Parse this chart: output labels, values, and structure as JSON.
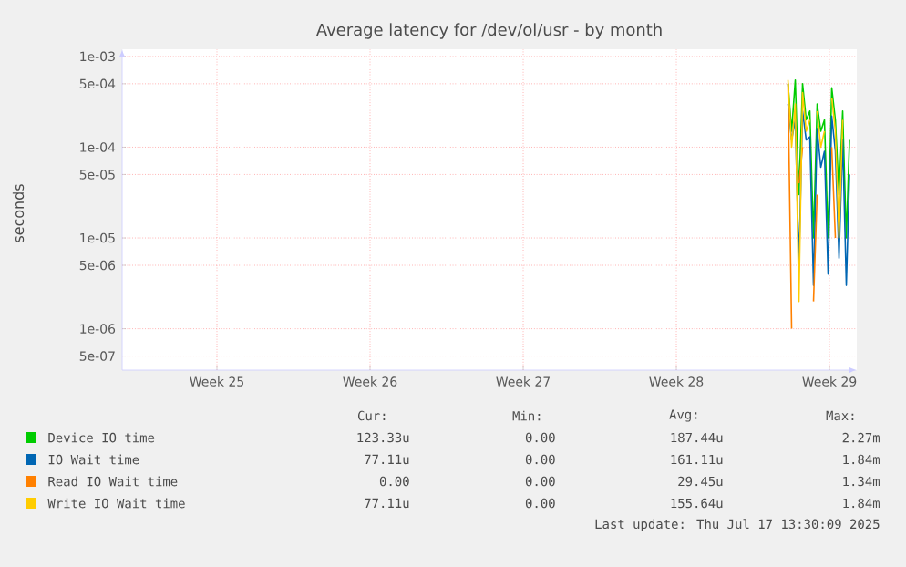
{
  "chart_data": {
    "type": "line",
    "title": "Average latency for /dev/ol/usr - by month",
    "ylabel": "seconds",
    "log": "y",
    "grid": true,
    "legend": "bottom",
    "line_style": "solid",
    "marker": "none",
    "xlim": [
      "2025-06-14T07:30",
      "2025-07-17T21:30"
    ],
    "xticks": [
      {
        "value": "2025-06-18T15:30",
        "label": "Week 25"
      },
      {
        "value": "2025-06-25T15:30",
        "label": "Week 26"
      },
      {
        "value": "2025-07-02T15:30",
        "label": "Week 27"
      },
      {
        "value": "2025-07-09T15:30",
        "label": "Week 28"
      },
      {
        "value": "2025-07-16T15:30",
        "label": "Week 29"
      }
    ],
    "ylim": [
      3.5e-07,
      0.0012
    ],
    "yticks": [
      {
        "value": 0.001,
        "label": "1e-03"
      },
      {
        "value": 0.0005,
        "label": "5e-04"
      },
      {
        "value": 0.0001,
        "label": "1e-04"
      },
      {
        "value": 5e-05,
        "label": "5e-05"
      },
      {
        "value": 1e-05,
        "label": "1e-05"
      },
      {
        "value": 5e-06,
        "label": "5e-06"
      },
      {
        "value": 1e-06,
        "label": "1e-06"
      },
      {
        "value": 5e-07,
        "label": "5e-07"
      }
    ],
    "x": [
      "2025-07-14T18:00",
      "2025-07-14T22:00",
      "2025-07-15T02:00",
      "2025-07-15T06:00",
      "2025-07-15T10:00",
      "2025-07-15T14:00",
      "2025-07-15T18:00",
      "2025-07-15T22:00",
      "2025-07-16T02:00",
      "2025-07-16T06:00",
      "2025-07-16T10:00",
      "2025-07-16T14:00",
      "2025-07-16T18:00",
      "2025-07-16T22:00",
      "2025-07-17T02:00",
      "2025-07-17T06:00",
      "2025-07-17T10:00",
      "2025-07-17T13:30"
    ],
    "series": [
      {
        "name": "Device IO time",
        "color": "#00cc00",
        "values": [
          0.0005,
          0.00015,
          0.00055,
          3e-05,
          0.0005,
          0.0002,
          0.00025,
          1e-05,
          0.0003,
          0.00015,
          0.0002,
          1e-05,
          0.00045,
          0.0002,
          3e-05,
          0.00025,
          1e-05,
          0.00012
        ]
      },
      {
        "name": "IO Wait time",
        "color": "#0066b3",
        "values": [
          0.0003,
          0.00012,
          0.0002,
          5e-06,
          0.00025,
          0.00012,
          0.00013,
          3e-06,
          0.00016,
          6e-05,
          9e-05,
          4e-06,
          0.00022,
          9e-05,
          6e-06,
          0.00012,
          3e-06,
          5e-05
        ]
      },
      {
        "name": "Read IO Wait time",
        "color": "#ff8000",
        "values": [
          0.0005,
          1e-06,
          null,
          4e-05,
          0.0001,
          null,
          null,
          2e-06,
          3e-05,
          null,
          null,
          null,
          0.0001,
          1e-05,
          null,
          null,
          null,
          null
        ]
      },
      {
        "name": "Write IO Wait time",
        "color": "#ffcc00",
        "values": [
          0.00055,
          0.0001,
          0.0003,
          2e-06,
          0.0004,
          0.00015,
          0.0002,
          null,
          0.00025,
          0.0001,
          0.00015,
          null,
          0.00035,
          0.00015,
          1e-05,
          0.0002,
          null,
          null
        ]
      }
    ],
    "annotations": [
      "Cur:",
      "Min:",
      "Avg:",
      "Max:",
      "123.33u",
      "0.00",
      "187.44u",
      "2.27m",
      "77.11u",
      "0.00",
      "161.11u",
      "1.84m",
      "0.00",
      "0.00",
      "29.45u",
      "1.34m",
      "77.11u",
      "0.00",
      "155.64u",
      "1.84m",
      "Last update: Thu Jul 17 13:30:09 2025"
    ]
  }
}
